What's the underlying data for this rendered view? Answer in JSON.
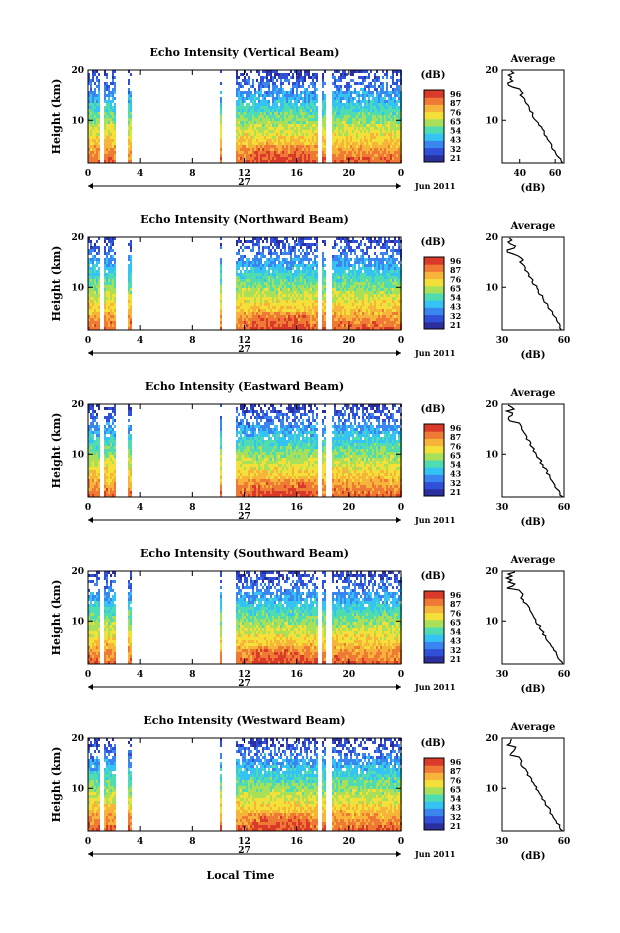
{
  "xlabel": "Local Time",
  "date_label": "Jun 2011",
  "day_label": "27",
  "unit_label": "(dB)",
  "avg_title": "Average",
  "ylabel": "Height (km)",
  "colorbar_ticks": [
    "96",
    "87",
    "76",
    "65",
    "54",
    "43",
    "32",
    "21"
  ],
  "colors": {
    "colormap": [
      "#2b2f9e",
      "#3050d8",
      "#3a86f0",
      "#34c3f2",
      "#4fdcb0",
      "#a8e05a",
      "#f3e13a",
      "#f6b43a",
      "#ef7a36",
      "#d93a2a"
    ]
  },
  "chart_data": [
    {
      "type": "heatmap",
      "title": "Echo Intensity (Vertical Beam)",
      "xticks": [
        "0",
        "4",
        "8",
        "12",
        "16",
        "20",
        "0"
      ],
      "yticks": [
        "20",
        "10"
      ],
      "xlim": [
        0,
        24
      ],
      "ylim": [
        1.5,
        20
      ],
      "color_range_db": [
        21,
        96
      ],
      "data_gaps_hours": [
        [
          0.9,
          1.1
        ],
        [
          2.1,
          3.0
        ],
        [
          3.3,
          5.5
        ],
        [
          5.5,
          10.0
        ],
        [
          10.2,
          11.2
        ],
        [
          17.6,
          17.8
        ],
        [
          18.1,
          18.6
        ]
      ],
      "avg_profile": {
        "xlabel": "(dB)",
        "xticks": [
          "40",
          "60"
        ],
        "xlim": [
          30,
          65
        ],
        "yticks": [
          "20",
          "10"
        ]
      }
    },
    {
      "type": "heatmap",
      "title": "Echo Intensity (Northward Beam)",
      "xticks": [
        "0",
        "4",
        "8",
        "12",
        "16",
        "20",
        "0"
      ],
      "yticks": [
        "20",
        "10"
      ],
      "xlim": [
        0,
        24
      ],
      "ylim": [
        1.5,
        20
      ],
      "color_range_db": [
        21,
        96
      ],
      "data_gaps_hours": [
        [
          0.9,
          1.1
        ],
        [
          2.1,
          3.0
        ],
        [
          3.3,
          5.5
        ],
        [
          5.5,
          10.0
        ],
        [
          10.2,
          11.2
        ],
        [
          17.6,
          17.8
        ],
        [
          18.1,
          18.6
        ]
      ],
      "avg_profile": {
        "xlabel": "(dB)",
        "xticks": [
          "30",
          "60"
        ],
        "xlim": [
          30,
          60
        ],
        "yticks": [
          "20",
          "10"
        ]
      }
    },
    {
      "type": "heatmap",
      "title": "Echo Intensity (Eastward Beam)",
      "xticks": [
        "0",
        "4",
        "8",
        "12",
        "16",
        "20",
        "0"
      ],
      "yticks": [
        "20",
        "10"
      ],
      "xlim": [
        0,
        24
      ],
      "ylim": [
        1.5,
        20
      ],
      "color_range_db": [
        21,
        96
      ],
      "data_gaps_hours": [
        [
          0.9,
          1.1
        ],
        [
          2.1,
          3.0
        ],
        [
          3.3,
          5.5
        ],
        [
          5.5,
          10.0
        ],
        [
          10.2,
          11.2
        ],
        [
          17.6,
          17.8
        ],
        [
          18.1,
          18.6
        ]
      ],
      "avg_profile": {
        "xlabel": "(dB)",
        "xticks": [
          "30",
          "60"
        ],
        "xlim": [
          30,
          60
        ],
        "yticks": [
          "20",
          "10"
        ]
      }
    },
    {
      "type": "heatmap",
      "title": "Echo Intensity (Southward Beam)",
      "xticks": [
        "0",
        "4",
        "8",
        "12",
        "16",
        "20",
        "0"
      ],
      "yticks": [
        "20",
        "10"
      ],
      "xlim": [
        0,
        24
      ],
      "ylim": [
        1.5,
        20
      ],
      "color_range_db": [
        21,
        96
      ],
      "data_gaps_hours": [
        [
          0.9,
          1.1
        ],
        [
          2.1,
          3.0
        ],
        [
          3.3,
          5.5
        ],
        [
          5.5,
          10.0
        ],
        [
          10.2,
          11.2
        ],
        [
          17.6,
          17.8
        ],
        [
          18.1,
          18.6
        ]
      ],
      "avg_profile": {
        "xlabel": "(dB)",
        "xticks": [
          "30",
          "60"
        ],
        "xlim": [
          30,
          60
        ],
        "yticks": [
          "20",
          "10"
        ]
      }
    },
    {
      "type": "heatmap",
      "title": "Echo Intensity (Westward Beam)",
      "xticks": [
        "0",
        "4",
        "8",
        "12",
        "16",
        "20",
        "0"
      ],
      "yticks": [
        "20",
        "10"
      ],
      "xlim": [
        0,
        24
      ],
      "ylim": [
        1.5,
        20
      ],
      "color_range_db": [
        21,
        96
      ],
      "data_gaps_hours": [
        [
          0.9,
          1.1
        ],
        [
          2.1,
          3.0
        ],
        [
          3.3,
          5.5
        ],
        [
          5.5,
          10.0
        ],
        [
          10.2,
          11.2
        ],
        [
          17.6,
          17.8
        ],
        [
          18.1,
          18.6
        ]
      ],
      "avg_profile": {
        "xlabel": "(dB)",
        "xticks": [
          "30",
          "60"
        ],
        "xlim": [
          30,
          60
        ],
        "yticks": [
          "20",
          "10"
        ]
      }
    }
  ]
}
